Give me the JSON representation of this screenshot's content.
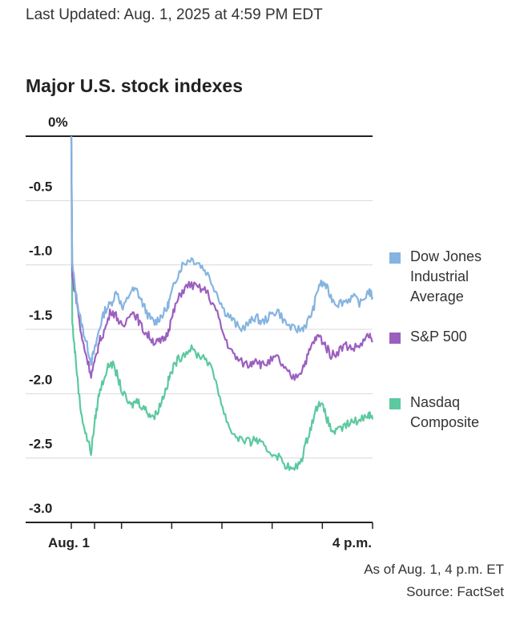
{
  "header": {
    "last_updated": "Last Updated: Aug. 1, 2025 at 4:59 PM EDT",
    "title": "Major U.S. stock indexes"
  },
  "footer": {
    "as_of": "As of Aug. 1, 4 p.m. ET",
    "source": "Source: FactSet"
  },
  "chart_data": {
    "type": "line",
    "title": "Major U.S. stock indexes",
    "ylim": [
      -3.0,
      0
    ],
    "y_ticks": [
      "0%",
      "-0.5",
      "-1.0",
      "-1.5",
      "-2.0",
      "-2.5",
      "-3.0"
    ],
    "y_tick_values": [
      0,
      -0.5,
      -1.0,
      -1.5,
      -2.0,
      -2.5,
      -3.0
    ],
    "x_labels": [
      "Aug. 1",
      "4 p.m."
    ],
    "x_tick_count": 7,
    "grid": true,
    "legend_placement": "right",
    "series": [
      {
        "name": "Dow Jones Industrial Average",
        "color": "#85b4e0",
        "points": [
          [
            0,
            0
          ],
          [
            0.05,
            -1.0
          ],
          [
            0.3,
            -1.3
          ],
          [
            0.5,
            -1.45
          ],
          [
            0.75,
            -1.6
          ],
          [
            1.0,
            -1.75
          ],
          [
            1.2,
            -1.65
          ],
          [
            1.4,
            -1.5
          ],
          [
            1.7,
            -1.35
          ],
          [
            2.0,
            -1.3
          ],
          [
            2.3,
            -1.2
          ],
          [
            2.6,
            -1.35
          ],
          [
            3.0,
            -1.2
          ],
          [
            3.3,
            -1.2
          ],
          [
            3.6,
            -1.3
          ],
          [
            3.9,
            -1.4
          ],
          [
            4.2,
            -1.45
          ],
          [
            4.5,
            -1.4
          ],
          [
            4.8,
            -1.35
          ],
          [
            5.0,
            -1.25
          ],
          [
            5.3,
            -1.1
          ],
          [
            5.6,
            -1.0
          ],
          [
            6.0,
            -0.95
          ],
          [
            6.4,
            -0.98
          ],
          [
            6.8,
            -1.05
          ],
          [
            7.3,
            -1.2
          ],
          [
            7.7,
            -1.35
          ],
          [
            8.1,
            -1.42
          ],
          [
            8.5,
            -1.5
          ],
          [
            9.0,
            -1.45
          ],
          [
            9.3,
            -1.4
          ],
          [
            9.6,
            -1.45
          ],
          [
            10.0,
            -1.4
          ],
          [
            10.4,
            -1.35
          ],
          [
            10.8,
            -1.45
          ],
          [
            11.2,
            -1.5
          ],
          [
            11.6,
            -1.5
          ],
          [
            11.9,
            -1.45
          ],
          [
            12.2,
            -1.35
          ],
          [
            12.5,
            -1.15
          ],
          [
            12.8,
            -1.15
          ],
          [
            13.1,
            -1.25
          ],
          [
            13.4,
            -1.3
          ],
          [
            13.8,
            -1.28
          ],
          [
            14.2,
            -1.25
          ],
          [
            14.6,
            -1.3
          ],
          [
            15.0,
            -1.2
          ],
          [
            15.2,
            -1.25
          ]
        ]
      },
      {
        "name": "S&P 500",
        "color": "#9b5fc0",
        "points": [
          [
            0,
            0
          ],
          [
            0.05,
            -1.1
          ],
          [
            0.3,
            -1.3
          ],
          [
            0.5,
            -1.55
          ],
          [
            0.75,
            -1.7
          ],
          [
            1.0,
            -1.85
          ],
          [
            1.2,
            -1.75
          ],
          [
            1.4,
            -1.6
          ],
          [
            1.7,
            -1.5
          ],
          [
            2.0,
            -1.35
          ],
          [
            2.3,
            -1.4
          ],
          [
            2.6,
            -1.5
          ],
          [
            3.0,
            -1.35
          ],
          [
            3.3,
            -1.4
          ],
          [
            3.6,
            -1.5
          ],
          [
            3.9,
            -1.55
          ],
          [
            4.2,
            -1.6
          ],
          [
            4.5,
            -1.6
          ],
          [
            4.8,
            -1.55
          ],
          [
            5.0,
            -1.45
          ],
          [
            5.3,
            -1.3
          ],
          [
            5.6,
            -1.2
          ],
          [
            6.0,
            -1.15
          ],
          [
            6.4,
            -1.18
          ],
          [
            6.8,
            -1.2
          ],
          [
            7.3,
            -1.35
          ],
          [
            7.7,
            -1.55
          ],
          [
            8.1,
            -1.68
          ],
          [
            8.5,
            -1.75
          ],
          [
            9.0,
            -1.78
          ],
          [
            9.3,
            -1.72
          ],
          [
            9.6,
            -1.78
          ],
          [
            10.0,
            -1.75
          ],
          [
            10.4,
            -1.72
          ],
          [
            10.8,
            -1.82
          ],
          [
            11.2,
            -1.88
          ],
          [
            11.6,
            -1.82
          ],
          [
            11.9,
            -1.72
          ],
          [
            12.2,
            -1.6
          ],
          [
            12.5,
            -1.55
          ],
          [
            12.8,
            -1.62
          ],
          [
            13.1,
            -1.7
          ],
          [
            13.4,
            -1.68
          ],
          [
            13.8,
            -1.62
          ],
          [
            14.2,
            -1.65
          ],
          [
            14.6,
            -1.62
          ],
          [
            15.0,
            -1.55
          ],
          [
            15.2,
            -1.6
          ]
        ]
      },
      {
        "name": "Nasdaq Composite",
        "color": "#5cc9a0",
        "points": [
          [
            0,
            0
          ],
          [
            0.05,
            -1.45
          ],
          [
            0.2,
            -1.7
          ],
          [
            0.45,
            -2.1
          ],
          [
            0.7,
            -2.3
          ],
          [
            1.0,
            -2.45
          ],
          [
            1.2,
            -2.2
          ],
          [
            1.4,
            -2.0
          ],
          [
            1.7,
            -1.85
          ],
          [
            2.0,
            -1.75
          ],
          [
            2.3,
            -1.85
          ],
          [
            2.6,
            -2.0
          ],
          [
            3.0,
            -2.1
          ],
          [
            3.3,
            -2.05
          ],
          [
            3.6,
            -2.1
          ],
          [
            3.9,
            -2.15
          ],
          [
            4.2,
            -2.18
          ],
          [
            4.5,
            -2.08
          ],
          [
            4.8,
            -1.95
          ],
          [
            5.0,
            -1.85
          ],
          [
            5.3,
            -1.75
          ],
          [
            5.6,
            -1.7
          ],
          [
            6.0,
            -1.65
          ],
          [
            6.4,
            -1.7
          ],
          [
            6.8,
            -1.72
          ],
          [
            7.3,
            -1.9
          ],
          [
            7.7,
            -2.15
          ],
          [
            8.1,
            -2.3
          ],
          [
            8.5,
            -2.35
          ],
          [
            9.0,
            -2.38
          ],
          [
            9.3,
            -2.35
          ],
          [
            9.6,
            -2.4
          ],
          [
            10.0,
            -2.45
          ],
          [
            10.4,
            -2.48
          ],
          [
            10.8,
            -2.55
          ],
          [
            11.2,
            -2.6
          ],
          [
            11.6,
            -2.52
          ],
          [
            11.9,
            -2.35
          ],
          [
            12.2,
            -2.2
          ],
          [
            12.5,
            -2.05
          ],
          [
            12.8,
            -2.15
          ],
          [
            13.1,
            -2.28
          ],
          [
            13.4,
            -2.3
          ],
          [
            13.8,
            -2.25
          ],
          [
            14.2,
            -2.22
          ],
          [
            14.6,
            -2.2
          ],
          [
            15.0,
            -2.15
          ],
          [
            15.2,
            -2.2
          ]
        ]
      }
    ]
  }
}
